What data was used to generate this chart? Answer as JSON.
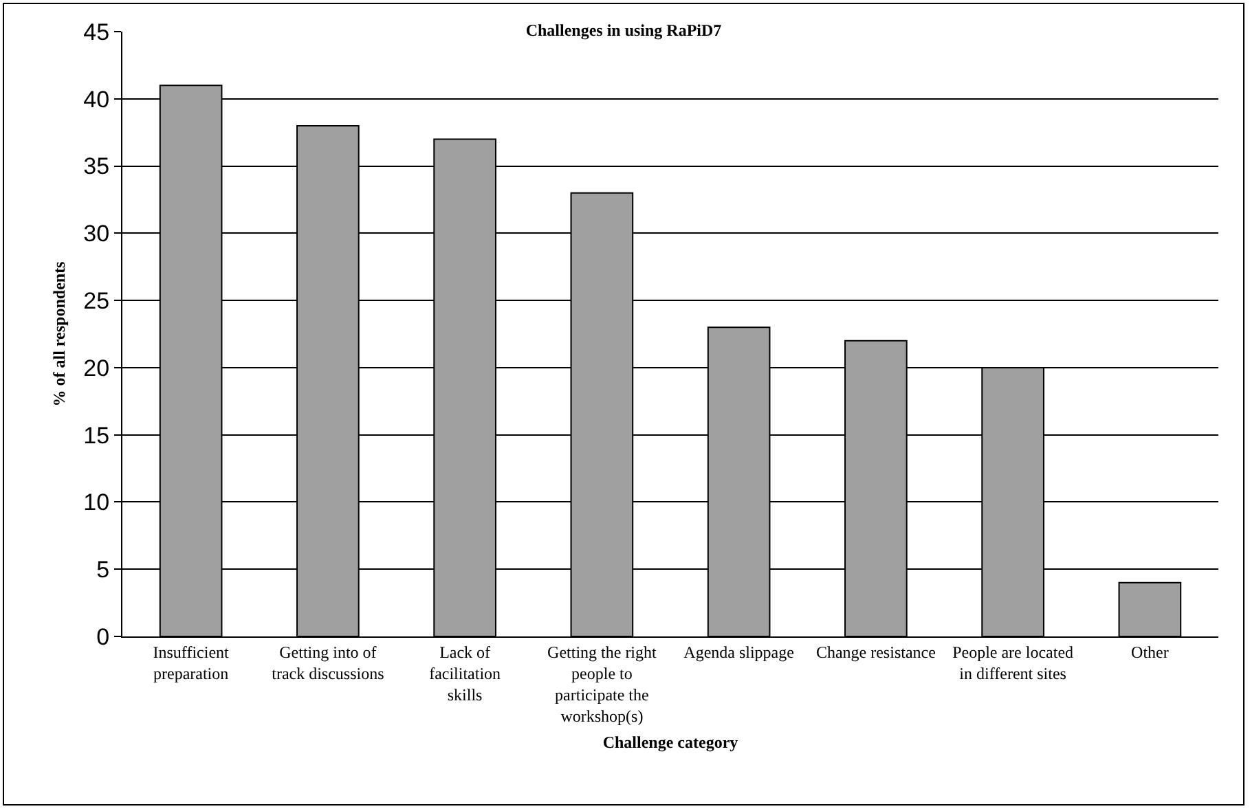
{
  "chart_data": {
    "type": "bar",
    "title": "Challenges in using RaPiD7",
    "xlabel": "Challenge category",
    "ylabel": "% of all respondents",
    "categories": [
      "Insufficient preparation",
      "Getting into of track discussions",
      "Lack of facilitation skills",
      "Getting the right people to participate the workshop(s)",
      "Agenda slippage",
      "Change resistance",
      "People are located in different sites",
      "Other"
    ],
    "values": [
      41,
      38,
      37,
      33,
      23,
      22,
      20,
      4
    ],
    "color": "#a0a0a0",
    "ylim": [
      0,
      45
    ],
    "yticks": [
      0,
      5,
      10,
      15,
      20,
      25,
      30,
      35,
      40,
      45
    ],
    "grid": "y"
  }
}
